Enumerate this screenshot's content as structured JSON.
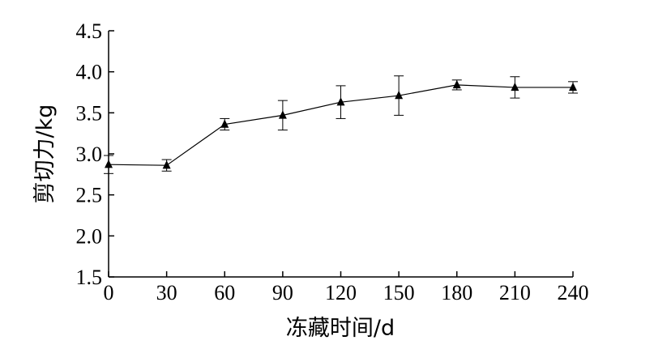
{
  "chart_data": {
    "type": "line",
    "title": "",
    "xlabel": "冻藏时间/d",
    "ylabel": "剪切力/kg",
    "x": [
      0,
      30,
      60,
      90,
      120,
      150,
      180,
      210,
      240
    ],
    "series": [
      {
        "values": [
          2.87,
          2.86,
          3.36,
          3.47,
          3.63,
          3.71,
          3.84,
          3.81,
          3.81
        ],
        "error": [
          0.11,
          0.07,
          0.07,
          0.18,
          0.2,
          0.24,
          0.06,
          0.13,
          0.07
        ],
        "marker": "triangle",
        "color": "#000000"
      }
    ],
    "xticks": [
      "0",
      "30",
      "60",
      "90",
      "120",
      "150",
      "180",
      "210",
      "240"
    ],
    "yticks": [
      "1.5",
      "2.0",
      "2.5",
      "3.0",
      "3.5",
      "4.0",
      "4.5"
    ],
    "xlim": [
      0,
      240
    ],
    "ylim": [
      1.5,
      4.5
    ],
    "grid": false,
    "legend": "none"
  }
}
